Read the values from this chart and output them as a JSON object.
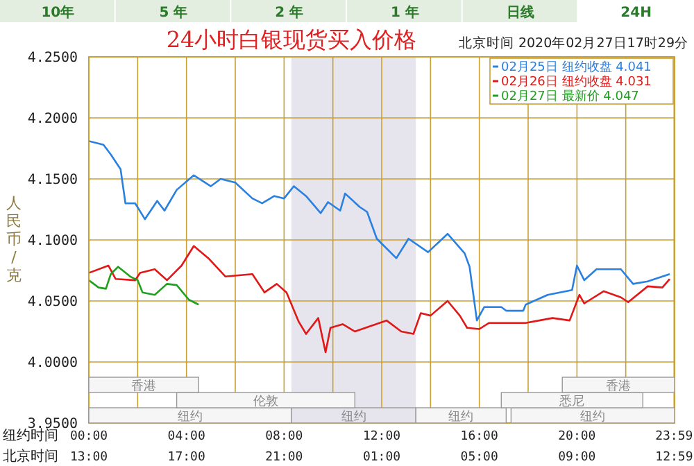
{
  "chart_data": {
    "type": "line",
    "title": "24小时白银现货买入价格",
    "subtitle": "北京时间 2020年02月27日17时29分",
    "ylabel": "人民币/克",
    "xlabel": "纽约时间",
    "x2label": "北京时间",
    "annotations": [
      "10年",
      "5 年",
      "2 年",
      "1 年",
      "日线",
      "24H"
    ],
    "xlim": [
      0,
      24
    ],
    "xticks": [
      {
        "value": 0,
        "label": "00:00"
      },
      {
        "value": 2,
        "label": null
      },
      {
        "value": 4,
        "label": "04:00"
      },
      {
        "value": 6,
        "label": null
      },
      {
        "value": 8,
        "label": "08:00"
      },
      {
        "value": 10,
        "label": null
      },
      {
        "value": 12,
        "label": "12:00"
      },
      {
        "value": 14,
        "label": null
      },
      {
        "value": 16,
        "label": "16:00"
      },
      {
        "value": 18,
        "label": null
      },
      {
        "value": 20,
        "label": "20:00"
      },
      {
        "value": 22,
        "label": null
      },
      {
        "value": 23.98,
        "label": "23:59"
      }
    ],
    "x2lim": [
      "2020-02-27T13:00",
      "2020-02-28T13:00"
    ],
    "x2ticks": [
      {
        "value": "2020-02-27T13:00",
        "label": "13:00"
      },
      {
        "value": "2020-02-27T17:00",
        "label": "17:00"
      },
      {
        "value": "2020-02-27T21:00",
        "label": "21:00"
      },
      {
        "value": "2020-02-28T01:00",
        "label": "01:00"
      },
      {
        "value": "2020-02-28T05:00",
        "label": "05:00"
      },
      {
        "value": "2020-02-28T09:00",
        "label": "09:00"
      },
      {
        "value": "2020-02-28T12:59",
        "label": "12:59"
      }
    ],
    "ylim": [
      3.95,
      4.25
    ],
    "yticks": [
      {
        "value": 3.95,
        "label": "3.9500"
      },
      {
        "value": 4.0,
        "label": "4.0000"
      },
      {
        "value": 4.05,
        "label": "4.0500"
      },
      {
        "value": 4.1,
        "label": "4.1000"
      },
      {
        "value": 4.15,
        "label": "4.1500"
      },
      {
        "value": 4.2,
        "label": "4.2000"
      },
      {
        "value": 4.25,
        "label": "4.2500"
      }
    ],
    "grid": true,
    "legend": "top right",
    "bands": [
      {
        "axis": "x",
        "from": 8.3,
        "to": 13.4,
        "color": "#e6e4ec"
      },
      {
        "axis": "x",
        "from": 0,
        "to": 8.3,
        "label": "纽约",
        "color": "#f6f6f6"
      },
      {
        "axis": "x",
        "from": 8.3,
        "to": 13.4,
        "label": "纽约",
        "color": "#e6e4ec"
      },
      {
        "axis": "x",
        "from": 13.4,
        "to": 17.1,
        "label": "纽约",
        "color": "#f6f6f6"
      },
      {
        "axis": "x",
        "from": 17.3,
        "to": 24,
        "label": "纽约",
        "color": "#f6f6f6"
      },
      {
        "axis": "x",
        "from": 3.6,
        "to": 10.9,
        "label": "伦敦",
        "color": "#f6f6f6"
      },
      {
        "axis": "x",
        "from": 16.9,
        "to": 22.7,
        "label": "悉尼",
        "color": "#f6f6f6"
      },
      {
        "axis": "x",
        "from": 0,
        "to": 4.5,
        "label": "香港",
        "color": "#f6f6f6"
      },
      {
        "axis": "x",
        "from": 19.4,
        "to": 24,
        "label": "香港",
        "color": "#f6f6f6"
      }
    ],
    "series": [
      {
        "name": "02月25日 纽约收盘 4.041",
        "color": "#2a80e0",
        "x": [
          0,
          0.6,
          0.9,
          1.3,
          1.5,
          1.9,
          2.3,
          2.8,
          3.1,
          3.6,
          4.3,
          5.0,
          5.4,
          6.0,
          6.7,
          7.1,
          7.6,
          8.0,
          8.4,
          8.9,
          9.5,
          9.8,
          10.3,
          10.5,
          11.1,
          11.4,
          11.8,
          12.6,
          13.1,
          13.9,
          14.7,
          15.4,
          15.6,
          15.9,
          16.2,
          16.9,
          17.1,
          17.8,
          17.9,
          18.8,
          19.8,
          20.0,
          20.3,
          20.8,
          21.8,
          22.3,
          22.9,
          23.8
        ],
        "values": [
          4.181,
          4.178,
          4.17,
          4.158,
          4.13,
          4.13,
          4.117,
          4.132,
          4.124,
          4.141,
          4.153,
          4.144,
          4.15,
          4.147,
          4.134,
          4.13,
          4.136,
          4.134,
          4.144,
          4.136,
          4.122,
          4.131,
          4.124,
          4.138,
          4.127,
          4.123,
          4.101,
          4.085,
          4.101,
          4.09,
          4.105,
          4.089,
          4.078,
          4.034,
          4.045,
          4.045,
          4.042,
          4.042,
          4.047,
          4.055,
          4.059,
          4.079,
          4.067,
          4.076,
          4.076,
          4.064,
          4.066,
          4.072
        ]
      },
      {
        "name": "02月26日 纽约收盘 4.031",
        "color": "#e01818",
        "x": [
          0,
          0.8,
          1.1,
          1.9,
          2.1,
          2.7,
          3.2,
          3.8,
          4.3,
          4.9,
          5.6,
          6.7,
          7.2,
          7.7,
          8.1,
          8.6,
          8.9,
          9.4,
          9.7,
          9.9,
          10.4,
          10.9,
          12.2,
          12.8,
          13.3,
          13.6,
          14.0,
          14.7,
          15.2,
          15.5,
          16.0,
          16.4,
          17.9,
          19.0,
          19.7,
          20.1,
          20.3,
          21.1,
          21.8,
          22.1,
          22.9,
          23.5,
          23.8
        ],
        "values": [
          4.073,
          4.079,
          4.068,
          4.067,
          4.073,
          4.076,
          4.067,
          4.079,
          4.095,
          4.085,
          4.07,
          4.072,
          4.057,
          4.064,
          4.057,
          4.033,
          4.023,
          4.036,
          4.008,
          4.028,
          4.031,
          4.025,
          4.034,
          4.025,
          4.023,
          4.04,
          4.038,
          4.05,
          4.038,
          4.028,
          4.027,
          4.032,
          4.032,
          4.036,
          4.034,
          4.055,
          4.048,
          4.058,
          4.053,
          4.049,
          4.062,
          4.061,
          4.068
        ]
      },
      {
        "name": "02月27日 最新价 4.047",
        "color": "#20a020",
        "x": [
          0,
          0.4,
          0.7,
          0.9,
          1.2,
          1.7,
          2.0,
          2.2,
          2.7,
          3.2,
          3.6,
          4.1,
          4.5
        ],
        "values": [
          4.067,
          4.061,
          4.06,
          4.072,
          4.078,
          4.07,
          4.067,
          4.057,
          4.055,
          4.064,
          4.063,
          4.051,
          4.047
        ]
      }
    ]
  }
}
